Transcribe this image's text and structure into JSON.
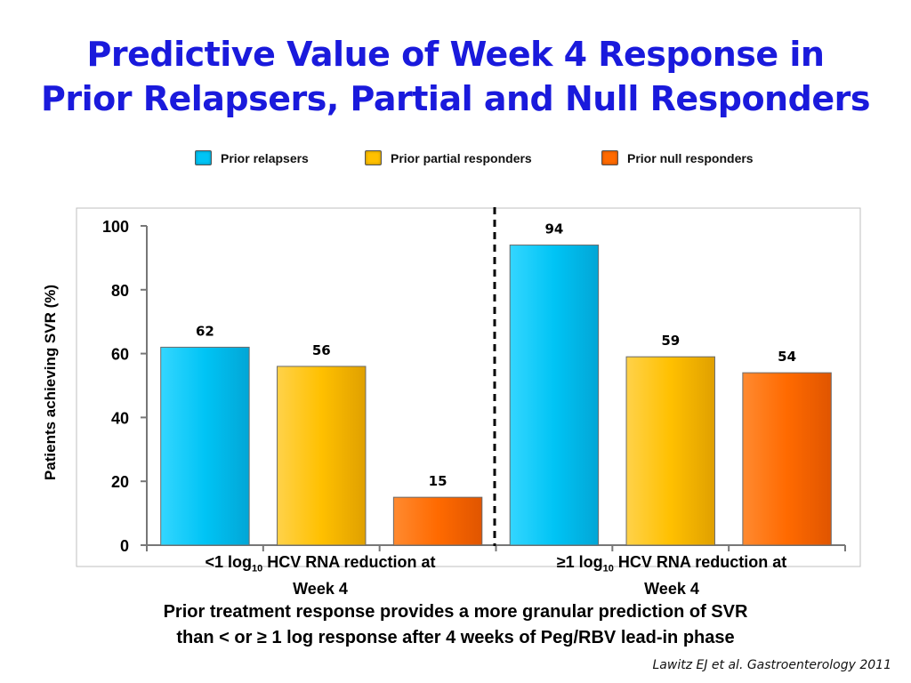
{
  "slide": {
    "title_line1": "Predictive Value of Week 4 Response in",
    "title_line2": "Prior Relapsers, Partial and Null Responders",
    "footnote_line1": "Prior treatment response provides a more granular prediction of SVR",
    "footnote_line2": "than < or ≥ 1 log response after 4 weeks of Peg/RBV lead-in phase",
    "citation": "Lawitz EJ et al. Gastroenterology 2011"
  },
  "chart_data": {
    "type": "bar",
    "title": "",
    "ylabel": "Patients achieving SVR (%)",
    "xlabel": "",
    "ylim": [
      0,
      100
    ],
    "yticks": [
      0,
      20,
      40,
      60,
      80,
      100
    ],
    "grid": false,
    "legend_position": "top",
    "categories": [
      {
        "prefix": "<1 log",
        "sub": "10",
        "suffix": " HCV RNA reduction at",
        "line2": "Week 4"
      },
      {
        "prefix": "≥1 log",
        "sub": "10",
        "suffix": " HCV RNA reduction at",
        "line2": "Week 4"
      }
    ],
    "series": [
      {
        "name": "Prior relapsers",
        "color": "#00c4f5",
        "values": [
          62,
          94
        ]
      },
      {
        "name": "Prior partial responders",
        "color": "#ffc000",
        "values": [
          56,
          59
        ]
      },
      {
        "name": "Prior null responders",
        "color": "#ff6a00",
        "values": [
          15,
          54
        ]
      }
    ]
  }
}
